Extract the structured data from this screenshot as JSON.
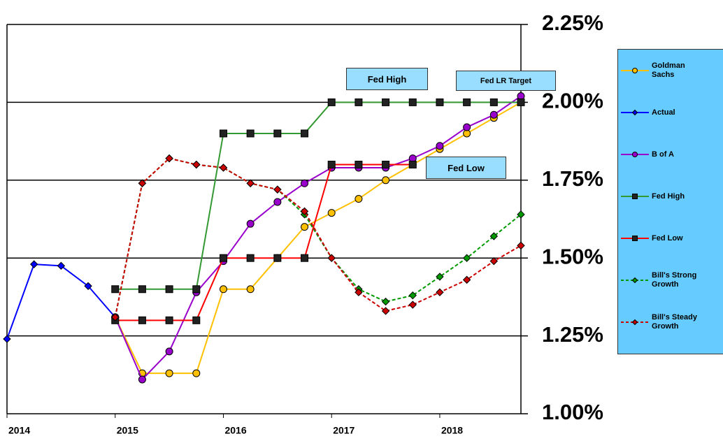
{
  "chart_data": {
    "type": "line",
    "x": [
      2014,
      2014.25,
      2014.5,
      2014.75,
      2015,
      2015.25,
      2015.5,
      2015.75,
      2016,
      2016.25,
      2016.5,
      2016.75,
      2017,
      2017.25,
      2017.5,
      2017.75,
      2018,
      2018.25,
      2018.5,
      2018.75
    ],
    "xlim": [
      2014,
      2018.75
    ],
    "xticks": [
      2014,
      2015,
      2016,
      2017,
      2018
    ],
    "ylim": [
      1.0,
      2.25
    ],
    "yticks": [
      {
        "value": 1.0,
        "label": "1.00%"
      },
      {
        "value": 1.25,
        "label": "1.25%"
      },
      {
        "value": 1.5,
        "label": "1.50%"
      },
      {
        "value": 1.75,
        "label": "1.75%"
      },
      {
        "value": 2.0,
        "label": "2.00%"
      },
      {
        "value": 2.25,
        "label": "2.25%"
      }
    ],
    "grid": true,
    "legend": "right",
    "series": [
      {
        "name": "Goldman Sachs",
        "color": "#ffc000",
        "marker": "circle",
        "dash": false,
        "values": [
          null,
          null,
          null,
          null,
          1.31,
          1.13,
          1.13,
          1.13,
          1.4,
          1.4,
          1.5,
          1.6,
          1.645,
          1.69,
          1.75,
          1.8,
          1.85,
          1.9,
          1.95,
          2.0
        ]
      },
      {
        "name": "Actual",
        "color": "#0000ff",
        "marker": "diamond",
        "dash": false,
        "values": [
          1.24,
          1.48,
          1.475,
          1.41,
          1.31,
          null,
          null,
          null,
          null,
          null,
          null,
          null,
          null,
          null,
          null,
          null,
          null,
          null,
          null,
          null
        ]
      },
      {
        "name": "B of A",
        "color": "#9900cc",
        "marker": "circle",
        "dash": false,
        "values": [
          null,
          null,
          null,
          null,
          1.31,
          1.11,
          1.2,
          1.39,
          1.49,
          1.61,
          1.68,
          1.74,
          1.79,
          1.79,
          1.79,
          1.82,
          1.86,
          1.92,
          1.96,
          2.02
        ]
      },
      {
        "name": "Fed High",
        "color": "#339933",
        "marker": "square",
        "dash": false,
        "values": [
          null,
          null,
          null,
          null,
          1.4,
          1.4,
          1.4,
          1.4,
          1.9,
          1.9,
          1.9,
          1.9,
          2.0,
          2.0,
          2.0,
          2.0,
          2.0,
          2.0,
          2.0,
          2.0
        ]
      },
      {
        "name": "Fed Low",
        "color": "#ff0000",
        "marker": "square",
        "dash": false,
        "values": [
          null,
          null,
          null,
          null,
          1.3,
          1.3,
          1.3,
          1.3,
          1.5,
          1.5,
          1.5,
          1.5,
          1.8,
          1.8,
          1.8,
          1.8,
          null,
          null,
          null,
          null
        ]
      },
      {
        "name": "Bill's Strong Growth",
        "color": "#009900",
        "marker": "diamond",
        "dash": true,
        "values": [
          null,
          null,
          null,
          null,
          1.31,
          1.74,
          1.82,
          1.8,
          1.79,
          1.74,
          1.72,
          1.64,
          1.5,
          1.4,
          1.36,
          1.38,
          1.44,
          1.5,
          1.57,
          1.64
        ]
      },
      {
        "name": "Bill's Steady Growth",
        "color": "#cc0000",
        "marker": "diamond",
        "dash": true,
        "values": [
          null,
          null,
          null,
          null,
          1.31,
          1.74,
          1.82,
          1.8,
          1.79,
          1.74,
          1.72,
          1.65,
          1.5,
          1.39,
          1.33,
          1.35,
          1.39,
          1.43,
          1.49,
          1.54
        ]
      }
    ],
    "annotations": [
      "Fed High",
      "Fed LR Target",
      "Fed Low"
    ]
  }
}
